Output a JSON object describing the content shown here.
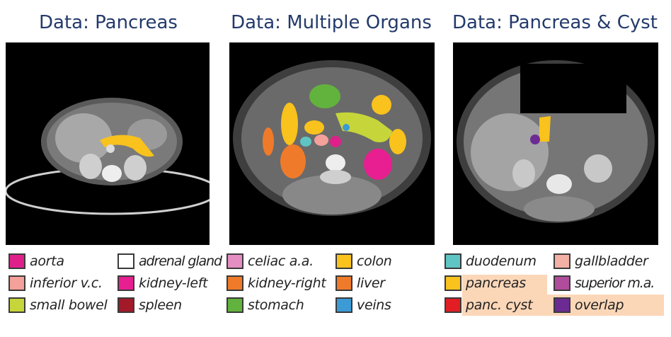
{
  "panels": [
    {
      "title": "Data: Pancreas"
    },
    {
      "title": "Data: Multiple Organs"
    },
    {
      "title": "Data: Pancreas & Cyst"
    }
  ],
  "legend": {
    "group1": [
      {
        "label": "aorta",
        "color": "#e0208a"
      },
      {
        "label": "adrenal gland",
        "color": "#ffffff"
      },
      {
        "label": "inferior v.c.",
        "color": "#f3a19a"
      },
      {
        "label": "kidney-left",
        "color": "#e81f91"
      },
      {
        "label": "small bowel",
        "color": "#c6d63a"
      },
      {
        "label": "spleen",
        "color": "#a21a2a"
      }
    ],
    "group2": [
      {
        "label": "celiac a.a.",
        "color": "#e58ec3"
      },
      {
        "label": "colon",
        "color": "#f9c21c"
      },
      {
        "label": "kidney-right",
        "color": "#ef7b2a"
      },
      {
        "label": "liver",
        "color": "#ef7b2a"
      },
      {
        "label": "stomach",
        "color": "#62b33d"
      },
      {
        "label": "veins",
        "color": "#3c9ad5"
      }
    ],
    "group3": [
      {
        "label": "duodenum",
        "color": "#5fc4c4"
      },
      {
        "label": "gallbladder",
        "color": "#f3b0a4"
      },
      {
        "label": "pancreas",
        "color": "#f9c21c"
      },
      {
        "label": "superior m.a.",
        "color": "#b04c9c"
      },
      {
        "label": "panc. cyst",
        "color": "#e21d24"
      },
      {
        "label": "overlap",
        "color": "#6c2b93"
      }
    ]
  }
}
